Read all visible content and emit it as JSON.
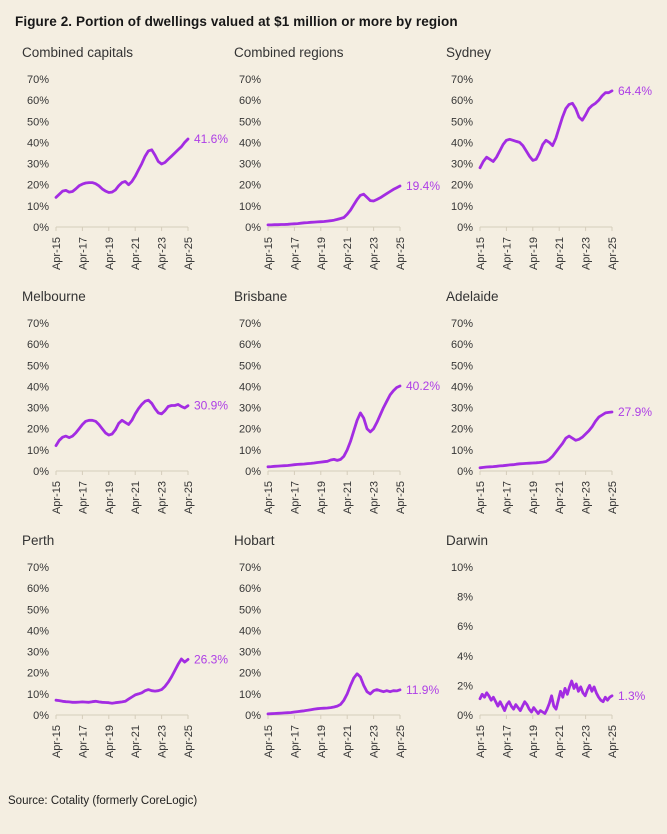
{
  "figure": {
    "title": "Figure 2. Portion of dwellings valued at $1 million or more by region",
    "source": "Source: Cotality (formerly CoreLogic)"
  },
  "colors": {
    "background": "#f4eee1",
    "line": "#a32ce2",
    "annotation": "#ae3ee6",
    "axis": "#d5cdbb",
    "tick_text": "#363636",
    "title_text": "#171717"
  },
  "chart_data": [
    {
      "type": "line",
      "title": "Combined capitals",
      "end_label": "41.6%",
      "ymax": 70,
      "yticks": [
        "70%",
        "60%",
        "50%",
        "40%",
        "30%",
        "20%",
        "10%",
        "0%"
      ],
      "xticks": [
        "Apr-15",
        "Apr-17",
        "Apr-19",
        "Apr-21",
        "Apr-23",
        "Apr-25"
      ],
      "x_start": "Apr-15",
      "x_end": "Apr-25",
      "values": [
        14,
        15.5,
        17,
        17.3,
        16.5,
        16.8,
        18,
        19.5,
        20.3,
        20.8,
        21,
        21,
        20.5,
        19.5,
        18,
        17,
        16.3,
        16.5,
        17.5,
        19.5,
        21,
        21.5,
        20,
        21.5,
        24,
        27,
        30,
        33.5,
        36,
        36.5,
        34,
        31,
        29.8,
        30.5,
        32,
        33.5,
        35,
        36.5,
        38,
        40,
        41.6
      ]
    },
    {
      "type": "line",
      "title": "Combined regions",
      "end_label": "19.4%",
      "ymax": 70,
      "yticks": [
        "70%",
        "60%",
        "50%",
        "40%",
        "30%",
        "20%",
        "10%",
        "0%"
      ],
      "xticks": [
        "Apr-15",
        "Apr-17",
        "Apr-19",
        "Apr-21",
        "Apr-23",
        "Apr-25"
      ],
      "x_start": "Apr-15",
      "x_end": "Apr-25",
      "values": [
        1,
        1,
        1.1,
        1.1,
        1.2,
        1.2,
        1.3,
        1.4,
        1.5,
        1.6,
        1.8,
        2,
        2.1,
        2.2,
        2.3,
        2.4,
        2.5,
        2.6,
        2.8,
        3,
        3.2,
        3.6,
        4,
        4.5,
        6,
        8,
        10.5,
        13,
        15,
        15.5,
        14,
        12.5,
        12.3,
        13,
        13.8,
        14.8,
        15.8,
        16.8,
        17.8,
        18.6,
        19.4
      ]
    },
    {
      "type": "line",
      "title": "Sydney",
      "end_label": "64.4%",
      "ymax": 70,
      "yticks": [
        "70%",
        "60%",
        "50%",
        "40%",
        "30%",
        "20%",
        "10%",
        "0%"
      ],
      "xticks": [
        "Apr-15",
        "Apr-17",
        "Apr-19",
        "Apr-21",
        "Apr-23",
        "Apr-25"
      ],
      "x_start": "Apr-15",
      "x_end": "Apr-25",
      "values": [
        28,
        31,
        33,
        32,
        31,
        33,
        36,
        39,
        41,
        41.5,
        41,
        40.5,
        40,
        38.5,
        36,
        33.5,
        31.5,
        32,
        35,
        39,
        41,
        40,
        38.5,
        42,
        47,
        52,
        56,
        58,
        58.5,
        56,
        52,
        50.5,
        53,
        56,
        57.5,
        58.5,
        60,
        62,
        63.5,
        63.5,
        64.4
      ]
    },
    {
      "type": "line",
      "title": "Melbourne",
      "end_label": "30.9%",
      "ymax": 70,
      "yticks": [
        "70%",
        "60%",
        "50%",
        "40%",
        "30%",
        "20%",
        "10%",
        "0%"
      ],
      "xticks": [
        "Apr-15",
        "Apr-17",
        "Apr-19",
        "Apr-21",
        "Apr-23",
        "Apr-25"
      ],
      "x_start": "Apr-15",
      "x_end": "Apr-25",
      "values": [
        12,
        14.5,
        16,
        16.5,
        15.8,
        16.5,
        18,
        20,
        22,
        23.5,
        24,
        24,
        23.5,
        22,
        20,
        18,
        17,
        17.5,
        19.5,
        22.5,
        24,
        23,
        22,
        24,
        27,
        29.5,
        31.5,
        33,
        33.5,
        32,
        29.5,
        27.5,
        27,
        28.5,
        30.5,
        31,
        31,
        31.5,
        30.5,
        29.8,
        30.9
      ]
    },
    {
      "type": "line",
      "title": "Brisbane",
      "end_label": "40.2%",
      "ymax": 70,
      "yticks": [
        "70%",
        "60%",
        "50%",
        "40%",
        "30%",
        "20%",
        "10%",
        "0%"
      ],
      "xticks": [
        "Apr-15",
        "Apr-17",
        "Apr-19",
        "Apr-21",
        "Apr-23",
        "Apr-25"
      ],
      "x_start": "Apr-15",
      "x_end": "Apr-25",
      "values": [
        2,
        2.1,
        2.2,
        2.3,
        2.4,
        2.5,
        2.6,
        2.8,
        3,
        3.1,
        3.2,
        3.3,
        3.5,
        3.6,
        3.8,
        4,
        4.2,
        4.4,
        4.6,
        5.2,
        5.5,
        5,
        5.5,
        7,
        10,
        14,
        19,
        24,
        27.5,
        25,
        20,
        18.5,
        20,
        23,
        26.5,
        30,
        33,
        36,
        38,
        39.5,
        40.2
      ]
    },
    {
      "type": "line",
      "title": "Adelaide",
      "end_label": "27.9%",
      "ymax": 70,
      "yticks": [
        "70%",
        "60%",
        "50%",
        "40%",
        "30%",
        "20%",
        "10%",
        "0%"
      ],
      "xticks": [
        "Apr-15",
        "Apr-17",
        "Apr-19",
        "Apr-21",
        "Apr-23",
        "Apr-25"
      ],
      "x_start": "Apr-15",
      "x_end": "Apr-25",
      "values": [
        1.5,
        1.7,
        1.9,
        2,
        2.1,
        2.2,
        2.4,
        2.5,
        2.7,
        2.9,
        3,
        3.2,
        3.4,
        3.5,
        3.6,
        3.7,
        3.8,
        3.9,
        4,
        4.2,
        4.5,
        5.5,
        7,
        9,
        11,
        13,
        15.5,
        16.5,
        15.5,
        14.5,
        15,
        16,
        17.5,
        19,
        21,
        23.5,
        25.5,
        26.5,
        27.5,
        27.7,
        27.9
      ]
    },
    {
      "type": "line",
      "title": "Perth",
      "end_label": "26.3%",
      "ymax": 70,
      "yticks": [
        "70%",
        "60%",
        "50%",
        "40%",
        "30%",
        "20%",
        "10%",
        "0%"
      ],
      "xticks": [
        "Apr-15",
        "Apr-17",
        "Apr-19",
        "Apr-21",
        "Apr-23",
        "Apr-25"
      ],
      "x_start": "Apr-15",
      "x_end": "Apr-25",
      "values": [
        7,
        6.8,
        6.5,
        6.3,
        6.2,
        6,
        6,
        6.1,
        6.2,
        6.1,
        6,
        6.3,
        6.5,
        6.2,
        6,
        5.9,
        5.8,
        5.6,
        5.8,
        6,
        6.2,
        6.5,
        7.5,
        8.5,
        9.5,
        10,
        10.5,
        11.5,
        12,
        11.5,
        11.3,
        11.5,
        12,
        13.5,
        15.5,
        18,
        21,
        24,
        26.5,
        25,
        26.3
      ]
    },
    {
      "type": "line",
      "title": "Hobart",
      "end_label": "11.9%",
      "ymax": 70,
      "yticks": [
        "70%",
        "60%",
        "50%",
        "40%",
        "30%",
        "20%",
        "10%",
        "0%"
      ],
      "xticks": [
        "Apr-15",
        "Apr-17",
        "Apr-19",
        "Apr-21",
        "Apr-23",
        "Apr-25"
      ],
      "x_start": "Apr-15",
      "x_end": "Apr-25",
      "values": [
        0.5,
        0.6,
        0.7,
        0.8,
        0.9,
        1,
        1.1,
        1.2,
        1.4,
        1.6,
        1.8,
        2,
        2.2,
        2.5,
        2.8,
        3,
        3.1,
        3.2,
        3.3,
        3.5,
        3.8,
        4.2,
        5,
        7,
        10,
        14,
        17.5,
        19.5,
        18,
        14,
        11,
        10,
        11.5,
        12,
        11.5,
        11,
        11.5,
        11,
        11.5,
        11.4,
        11.9
      ]
    },
    {
      "type": "line",
      "title": "Darwin",
      "end_label": "1.3%",
      "ymax": 10,
      "yticks": [
        "10%",
        "8%",
        "6%",
        "4%",
        "2%",
        "0%"
      ],
      "xticks": [
        "Apr-15",
        "Apr-17",
        "Apr-19",
        "Apr-21",
        "Apr-23",
        "Apr-25"
      ],
      "x_start": "Apr-15",
      "x_end": "Apr-25",
      "values": [
        1.1,
        1.4,
        1.2,
        1.5,
        1.3,
        1.0,
        1.2,
        0.9,
        0.6,
        0.9,
        0.6,
        0.3,
        0.7,
        0.9,
        0.6,
        0.4,
        0.7,
        0.5,
        0.3,
        0.6,
        0.9,
        0.7,
        0.4,
        0.2,
        0.5,
        0.3,
        0.1,
        0.3,
        0.2,
        0.1,
        0.4,
        0.8,
        1.3,
        0.6,
        0.4,
        1.0,
        1.6,
        1.2,
        1.8,
        1.4,
        1.9,
        2.3,
        1.8,
        2.1,
        1.6,
        1.9,
        1.5,
        1.3,
        1.7,
        2.0,
        1.6,
        1.9,
        1.5,
        1.2,
        1.0,
        0.9,
        1.2,
        1.0,
        1.2,
        1.3
      ]
    }
  ]
}
